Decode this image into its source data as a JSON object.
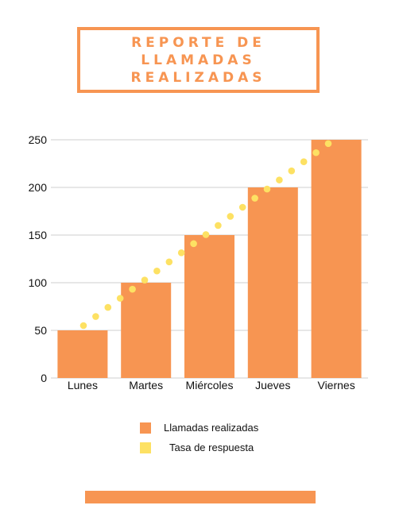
{
  "header": {
    "title_line1": "REPORTE DE",
    "title_line2": "LLAMADAS REALIZADAS"
  },
  "colors": {
    "bar": "#f79552",
    "dots": "#fde163",
    "grid": "#cfcfcf",
    "accent": "#f79552"
  },
  "chart_data": {
    "type": "bar",
    "title": "",
    "xlabel": "",
    "ylabel": "",
    "ylim": [
      0,
      250
    ],
    "yticks": [
      0,
      50,
      100,
      150,
      200,
      250
    ],
    "categories": [
      "Lunes",
      "Martes",
      "Miércoles",
      "Jueves",
      "Viernes"
    ],
    "series": [
      {
        "name": "Llamadas realizadas",
        "type": "bar",
        "values": [
          50,
          100,
          150,
          200,
          250
        ]
      },
      {
        "name": "Tasa de respuesta",
        "type": "dotted-line",
        "values": [
          55,
          102,
          150,
          198,
          246
        ]
      }
    ],
    "grid": true,
    "legend_position": "bottom"
  },
  "legend": {
    "items": [
      {
        "label": "Llamadas realizadas",
        "color": "#f79552"
      },
      {
        "label": "Tasa de respuesta",
        "color": "#fde163"
      }
    ]
  }
}
